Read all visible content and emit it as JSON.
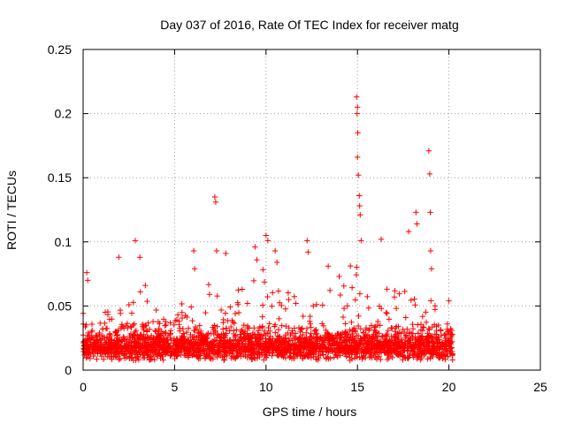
{
  "chart_data": {
    "type": "scatter",
    "title": "Day 037 of 2016, Rate Of TEC Index for receiver matg",
    "xlabel": "GPS time / hours",
    "ylabel": "ROTI / TECUs",
    "xlim": [
      0,
      25
    ],
    "ylim": [
      0,
      0.25
    ],
    "x_ticks": [
      0,
      5,
      10,
      15,
      20,
      25
    ],
    "y_ticks": [
      0,
      0.05,
      0.1,
      0.15,
      0.2,
      0.25
    ],
    "x_tick_labels": [
      "0",
      "5",
      "10",
      "15",
      "20",
      "25"
    ],
    "y_tick_labels": [
      "0",
      "0.05",
      "0.1",
      "0.15",
      "0.2",
      "0.25"
    ],
    "grid": true,
    "marker": "+",
    "color": "#ff0000",
    "data_span_hours": [
      0,
      20.2
    ],
    "notable_peaks": [
      {
        "x": 0.2,
        "y": 0.076
      },
      {
        "x": 0.25,
        "y": 0.07
      },
      {
        "x": 1.95,
        "y": 0.088
      },
      {
        "x": 2.85,
        "y": 0.101
      },
      {
        "x": 3.1,
        "y": 0.088
      },
      {
        "x": 3.4,
        "y": 0.066
      },
      {
        "x": 6.05,
        "y": 0.093
      },
      {
        "x": 6.1,
        "y": 0.079
      },
      {
        "x": 7.2,
        "y": 0.135
      },
      {
        "x": 7.25,
        "y": 0.131
      },
      {
        "x": 7.3,
        "y": 0.093
      },
      {
        "x": 7.8,
        "y": 0.091
      },
      {
        "x": 9.4,
        "y": 0.096
      },
      {
        "x": 9.5,
        "y": 0.086
      },
      {
        "x": 10.0,
        "y": 0.105
      },
      {
        "x": 10.1,
        "y": 0.101
      },
      {
        "x": 10.5,
        "y": 0.093
      },
      {
        "x": 10.6,
        "y": 0.084
      },
      {
        "x": 12.25,
        "y": 0.101
      },
      {
        "x": 12.3,
        "y": 0.092
      },
      {
        "x": 13.4,
        "y": 0.081
      },
      {
        "x": 14.0,
        "y": 0.073
      },
      {
        "x": 14.95,
        "y": 0.213
      },
      {
        "x": 15.0,
        "y": 0.205
      },
      {
        "x": 14.98,
        "y": 0.2
      },
      {
        "x": 15.02,
        "y": 0.185
      },
      {
        "x": 15.0,
        "y": 0.166
      },
      {
        "x": 15.05,
        "y": 0.152
      },
      {
        "x": 15.1,
        "y": 0.136
      },
      {
        "x": 15.12,
        "y": 0.128
      },
      {
        "x": 15.15,
        "y": 0.121
      },
      {
        "x": 15.2,
        "y": 0.101
      },
      {
        "x": 16.3,
        "y": 0.102
      },
      {
        "x": 17.8,
        "y": 0.108
      },
      {
        "x": 18.2,
        "y": 0.123
      },
      {
        "x": 18.25,
        "y": 0.114
      },
      {
        "x": 18.9,
        "y": 0.171
      },
      {
        "x": 18.95,
        "y": 0.153
      },
      {
        "x": 18.98,
        "y": 0.123
      },
      {
        "x": 19.0,
        "y": 0.093
      },
      {
        "x": 19.05,
        "y": 0.079
      },
      {
        "x": 20.0,
        "y": 0.054
      }
    ]
  }
}
